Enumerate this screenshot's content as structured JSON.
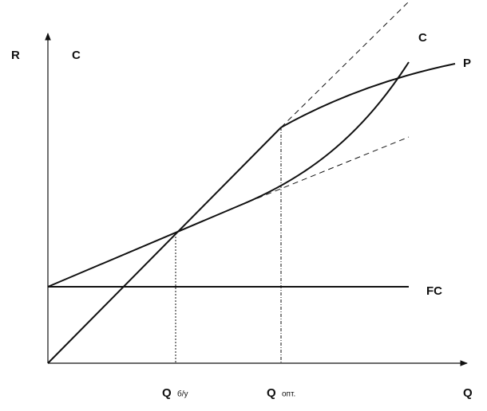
{
  "labels": {
    "axis_y_r": "R",
    "axis_y_c": "C",
    "curve_c": "C",
    "curve_p": "P",
    "fc": "FC",
    "q_be": "Q",
    "q_be_sub": "б/у",
    "q_opt": "Q",
    "q_opt_sub": "опт.",
    "axis_x": "Q"
  }
}
